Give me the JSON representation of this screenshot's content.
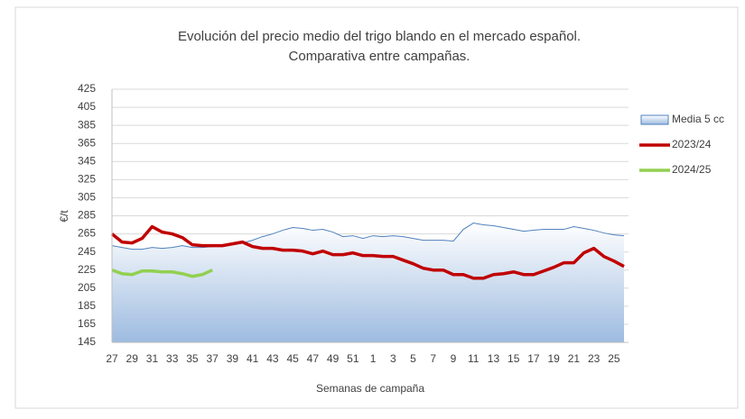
{
  "chart_data": {
    "type": "line",
    "title": [
      "Evolución del precio medio del trigo blando en el mercado español.",
      "Comparativa entre campañas."
    ],
    "x_label": "Semanas de campaña",
    "y_label": "€/t",
    "categories": [
      "27",
      null,
      "29",
      null,
      "31",
      null,
      "33",
      null,
      "35",
      null,
      "37",
      null,
      "39",
      null,
      "41",
      null,
      "43",
      null,
      "45",
      null,
      "47",
      null,
      "49",
      null,
      "51",
      null,
      "1",
      null,
      "3",
      null,
      "5",
      null,
      "7",
      null,
      "9",
      null,
      "11",
      null,
      "13",
      null,
      "15",
      null,
      "17",
      null,
      "19",
      null,
      "21",
      null,
      "23",
      null,
      "25",
      null
    ],
    "ylim": [
      145,
      425
    ],
    "yticks": [
      145,
      165,
      185,
      205,
      225,
      245,
      265,
      285,
      305,
      325,
      345,
      365,
      385,
      405,
      425
    ],
    "grid": true,
    "legend_position": "right",
    "series": [
      {
        "name": "Media 5 cc",
        "type": "area",
        "color": "#4f81bd",
        "values": [
          252,
          250,
          248,
          248,
          250,
          249,
          250,
          252,
          250,
          250,
          251,
          252,
          253,
          255,
          258,
          262,
          265,
          269,
          272,
          271,
          269,
          270,
          267,
          262,
          263,
          260,
          263,
          262,
          263,
          262,
          260,
          258,
          258,
          258,
          257,
          270,
          277,
          275,
          274,
          272,
          270,
          268,
          269,
          270,
          270,
          270,
          273,
          271,
          269,
          266,
          264,
          263
        ]
      },
      {
        "name": "2023/24",
        "type": "line",
        "color": "#c00000",
        "values": [
          265,
          256,
          255,
          260,
          273,
          267,
          265,
          261,
          253,
          252,
          252,
          252,
          254,
          256,
          251,
          249,
          249,
          247,
          247,
          246,
          243,
          246,
          242,
          242,
          244,
          241,
          241,
          240,
          240,
          236,
          232,
          227,
          225,
          225,
          220,
          220,
          216,
          216,
          220,
          221,
          223,
          220,
          220,
          224,
          228,
          233,
          233,
          244,
          249,
          240,
          235,
          229
        ]
      },
      {
        "name": "2024/25",
        "type": "line",
        "color": "#92d050",
        "values": [
          225,
          221,
          220,
          224,
          224,
          223,
          223,
          221,
          218,
          220,
          225,
          null,
          null,
          null,
          null,
          null,
          null,
          null,
          null,
          null,
          null,
          null,
          null,
          null,
          null,
          null,
          null,
          null,
          null,
          null,
          null,
          null,
          null,
          null,
          null,
          null,
          null,
          null,
          null,
          null,
          null,
          null,
          null,
          null,
          null,
          null,
          null,
          null,
          null,
          null,
          null,
          null
        ]
      }
    ]
  }
}
